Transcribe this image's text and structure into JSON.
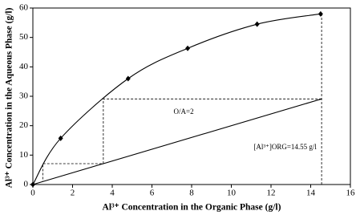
{
  "chart_data": {
    "type": "line",
    "xlabel": "Al³⁺ Concentration in the Organic Phase (g/l)",
    "ylabel": "Al³⁺ Concentration in the Aqueous Phase (g/l)",
    "xlim": [
      0,
      16
    ],
    "xticks": [
      0,
      2,
      4,
      6,
      8,
      10,
      12,
      14,
      16
    ],
    "ylim": [
      0,
      60
    ],
    "yticks": [
      0,
      10,
      20,
      30,
      40,
      50,
      60
    ],
    "series": [
      {
        "style": "curve",
        "marker": "diamond",
        "color": "#000000",
        "x": [
          0,
          1.4,
          4.8,
          7.8,
          11.3,
          14.5
        ],
        "values": [
          0,
          15.7,
          36,
          46.3,
          54.5,
          58
        ]
      },
      {
        "style": "solid",
        "color": "#000000",
        "x": [
          0,
          14.55
        ],
        "values": [
          0,
          29.1
        ]
      },
      {
        "style": "dashed",
        "color": "#000000",
        "x": [
          14.55,
          3.55,
          3.55,
          0.5,
          0.5
        ],
        "values": [
          29.1,
          29.1,
          7.1,
          7.1,
          1
        ]
      },
      {
        "style": "dashed",
        "color": "#000000",
        "x": [
          14.55,
          14.55
        ],
        "values": [
          0,
          58
        ]
      }
    ],
    "annotations": [
      {
        "text": "O/A=2",
        "x": 7.6,
        "y": 24.5
      },
      {
        "text": "[Al³⁺]ORG=14.55 g/l",
        "x": 14.3,
        "y": 12.5
      }
    ]
  }
}
